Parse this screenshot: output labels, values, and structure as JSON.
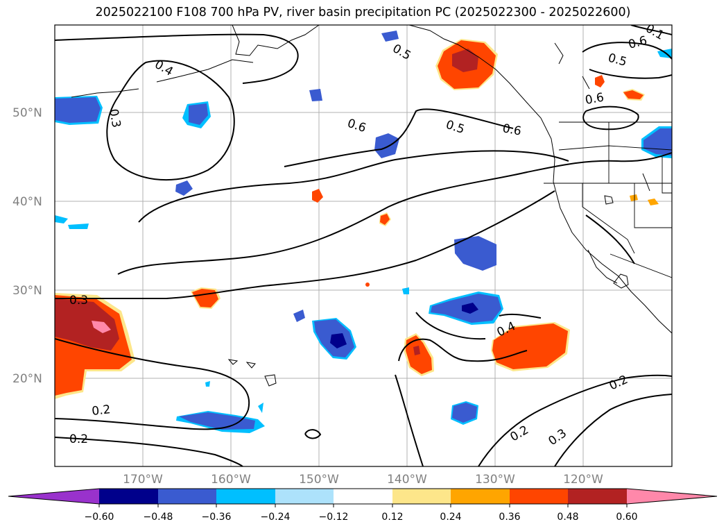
{
  "title": "2025022100 F108 700 hPa PV, river basin precipitation PC (2025022300 - 2025022600)",
  "lat_labels": [
    "50°N",
    "40°N",
    "30°N",
    "20°N"
  ],
  "lon_labels": [
    "170°W",
    "160°W",
    "150°W",
    "140°W",
    "130°W",
    "120°W"
  ],
  "contour_labels": [
    "0.4",
    "0.3",
    "0.6",
    "0.5",
    "0.6",
    "0.5",
    "0.6",
    "0.6",
    "0.5",
    "0.1",
    "0.3",
    "0.4",
    "0.2",
    "0.2",
    "0.2",
    "0.2",
    "0.3"
  ],
  "colorbar": {
    "ticks": [
      "−0.60",
      "−0.48",
      "−0.36",
      "−0.24",
      "−0.12",
      "0.12",
      "0.24",
      "0.36",
      "0.48",
      "0.60"
    ],
    "colors": [
      "#9932cc",
      "#00008b",
      "#3a5bd0",
      "#00bfff",
      "#ade2fb",
      "#ffffff",
      "#fde68a",
      "#ffa500",
      "#ff4500",
      "#b22222",
      "#ff88aa"
    ]
  }
}
